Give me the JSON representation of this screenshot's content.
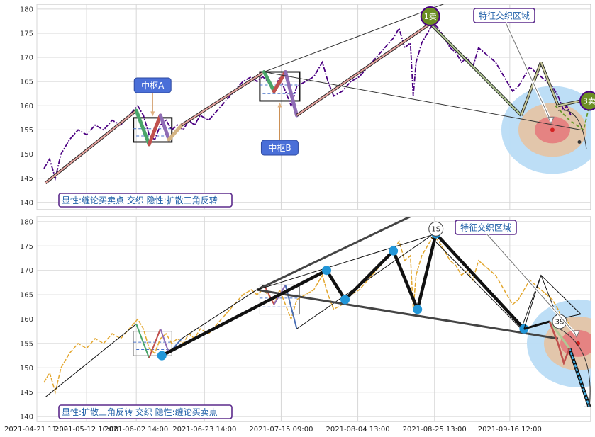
{
  "chart_data": [
    {
      "type": "line",
      "panel": "top",
      "ylim": [
        138.5,
        181
      ],
      "yticks": [
        140,
        145,
        150,
        155,
        160,
        165,
        170,
        175,
        180
      ],
      "price_color": "#4b0082",
      "price_series": [
        [
          0,
          147
        ],
        [
          4,
          149
        ],
        [
          8,
          145
        ],
        [
          12,
          150
        ],
        [
          18,
          153
        ],
        [
          24,
          155
        ],
        [
          30,
          154
        ],
        [
          36,
          156
        ],
        [
          42,
          155
        ],
        [
          48,
          157
        ],
        [
          54,
          156
        ],
        [
          60,
          158
        ],
        [
          66,
          160
        ],
        [
          70,
          158
        ],
        [
          74,
          154
        ],
        [
          78,
          153
        ],
        [
          82,
          156
        ],
        [
          86,
          157
        ],
        [
          90,
          155
        ],
        [
          94,
          156
        ],
        [
          98,
          155
        ],
        [
          102,
          157
        ],
        [
          106,
          156
        ],
        [
          110,
          158
        ],
        [
          116,
          157
        ],
        [
          122,
          159
        ],
        [
          128,
          161
        ],
        [
          134,
          163
        ],
        [
          140,
          165
        ],
        [
          146,
          166
        ],
        [
          150,
          165
        ],
        [
          154,
          166
        ],
        [
          158,
          165
        ],
        [
          162,
          163
        ],
        [
          166,
          166
        ],
        [
          170,
          163
        ],
        [
          174,
          160
        ],
        [
          178,
          164
        ],
        [
          184,
          165
        ],
        [
          190,
          166
        ],
        [
          196,
          169
        ],
        [
          200,
          165
        ],
        [
          204,
          162
        ],
        [
          210,
          163
        ],
        [
          216,
          165
        ],
        [
          222,
          166
        ],
        [
          228,
          168
        ],
        [
          234,
          170
        ],
        [
          240,
          172
        ],
        [
          246,
          174
        ],
        [
          250,
          176
        ],
        [
          254,
          172
        ],
        [
          258,
          173
        ],
        [
          260,
          162
        ],
        [
          262,
          169
        ],
        [
          266,
          173
        ],
        [
          270,
          175
        ],
        [
          274,
          177
        ],
        [
          278,
          176
        ],
        [
          282,
          174
        ],
        [
          286,
          172
        ],
        [
          290,
          171
        ],
        [
          294,
          169
        ],
        [
          298,
          170
        ],
        [
          302,
          168
        ],
        [
          306,
          172
        ],
        [
          310,
          171
        ],
        [
          314,
          170
        ],
        [
          318,
          169
        ],
        [
          322,
          167
        ],
        [
          326,
          165
        ],
        [
          330,
          163
        ],
        [
          334,
          164
        ],
        [
          338,
          166
        ],
        [
          342,
          168
        ],
        [
          346,
          167
        ],
        [
          350,
          166
        ],
        [
          354,
          165
        ],
        [
          358,
          164
        ],
        [
          362,
          162
        ],
        [
          366,
          159
        ],
        [
          368,
          160
        ],
        [
          371,
          158
        ]
      ],
      "bi_strokes": [
        [
          [
            1,
            144
          ],
          [
            65,
            159
          ],
          [
            74,
            152
          ],
          [
            82,
            158
          ],
          [
            88,
            153
          ],
          [
            97,
            156
          ]
        ],
        [
          [
            97,
            156
          ],
          [
            155,
            167
          ],
          [
            162,
            163
          ],
          [
            170,
            167
          ],
          [
            178,
            158
          ]
        ],
        [
          [
            178,
            158
          ],
          [
            272,
            177
          ],
          [
            336,
            158
          ],
          [
            350,
            169
          ],
          [
            362,
            160
          ],
          [
            378,
            161
          ]
        ]
      ],
      "segment_colors": [
        "#3b6fbf",
        "#4aa56a",
        "#c0504d",
        "#8f6db5",
        "#d4b483",
        "#6fb3d9"
      ],
      "wedge_upper": [
        [
          155,
          167
        ],
        [
          290,
          182
        ]
      ],
      "wedge_lower": [
        [
          155,
          167
        ],
        [
          378,
          155
        ]
      ],
      "centers": [
        {
          "label": "中枢A",
          "range": [
            152.5,
            157.5
          ],
          "start": 63,
          "end": 90
        },
        {
          "label": "中枢B",
          "range": [
            161,
            167
          ],
          "start": 152,
          "end": 180
        }
      ],
      "signals": [
        {
          "text": "1卖",
          "x": 272,
          "y": 178.5
        },
        {
          "text": "3卖",
          "x": 384,
          "y": 161
        }
      ],
      "target_center": {
        "x": 358,
        "y": 155
      },
      "zone_label": "特征交织区域",
      "caption": "显性:缠论买卖点 交织 隐性:扩散三角反转"
    },
    {
      "type": "line",
      "panel": "bottom",
      "ylim": [
        139,
        181
      ],
      "yticks": [
        140,
        145,
        150,
        155,
        160,
        165,
        170,
        175,
        180
      ],
      "price_color": "#e3a72f",
      "price_series": [
        [
          0,
          147
        ],
        [
          4,
          149
        ],
        [
          8,
          145
        ],
        [
          12,
          150
        ],
        [
          18,
          153
        ],
        [
          24,
          155
        ],
        [
          30,
          154
        ],
        [
          36,
          156
        ],
        [
          42,
          155
        ],
        [
          48,
          157
        ],
        [
          54,
          156
        ],
        [
          60,
          158
        ],
        [
          66,
          160
        ],
        [
          70,
          158
        ],
        [
          74,
          154
        ],
        [
          78,
          153
        ],
        [
          82,
          156
        ],
        [
          86,
          157
        ],
        [
          90,
          155
        ],
        [
          94,
          156
        ],
        [
          98,
          155
        ],
        [
          102,
          157
        ],
        [
          106,
          156
        ],
        [
          110,
          158
        ],
        [
          116,
          157
        ],
        [
          122,
          159
        ],
        [
          128,
          161
        ],
        [
          134,
          163
        ],
        [
          140,
          165
        ],
        [
          146,
          166
        ],
        [
          150,
          165
        ],
        [
          154,
          166
        ],
        [
          158,
          165
        ],
        [
          162,
          163
        ],
        [
          166,
          166
        ],
        [
          170,
          163
        ],
        [
          174,
          160
        ],
        [
          178,
          164
        ],
        [
          184,
          165
        ],
        [
          190,
          166
        ],
        [
          196,
          169
        ],
        [
          200,
          165
        ],
        [
          204,
          162
        ],
        [
          210,
          163
        ],
        [
          216,
          165
        ],
        [
          222,
          166
        ],
        [
          228,
          168
        ],
        [
          234,
          170
        ],
        [
          240,
          172
        ],
        [
          246,
          174
        ],
        [
          250,
          176
        ],
        [
          254,
          172
        ],
        [
          258,
          173
        ],
        [
          260,
          162
        ],
        [
          262,
          169
        ],
        [
          266,
          173
        ],
        [
          270,
          175
        ],
        [
          274,
          177
        ],
        [
          278,
          176
        ],
        [
          282,
          174
        ],
        [
          286,
          172
        ],
        [
          290,
          171
        ],
        [
          294,
          169
        ],
        [
          298,
          170
        ],
        [
          302,
          168
        ],
        [
          306,
          172
        ],
        [
          310,
          171
        ],
        [
          314,
          170
        ],
        [
          318,
          169
        ],
        [
          322,
          167
        ],
        [
          326,
          165
        ],
        [
          330,
          163
        ],
        [
          334,
          164
        ],
        [
          338,
          166
        ],
        [
          342,
          168
        ],
        [
          346,
          167
        ],
        [
          350,
          166
        ],
        [
          354,
          165
        ],
        [
          358,
          164
        ],
        [
          362,
          162
        ],
        [
          366,
          159
        ],
        [
          368,
          160
        ],
        [
          371,
          158
        ]
      ],
      "bi_thin": [
        [
          [
            1,
            144
          ],
          [
            65,
            159
          ],
          [
            74,
            152
          ],
          [
            82,
            158
          ],
          [
            88,
            153
          ],
          [
            97,
            156
          ],
          [
            155,
            167
          ],
          [
            162,
            163
          ],
          [
            170,
            167
          ],
          [
            178,
            158
          ],
          [
            272,
            177
          ],
          [
            336,
            158
          ],
          [
            350,
            169
          ],
          [
            362,
            160
          ],
          [
            378,
            161
          ]
        ]
      ],
      "triangle_path": [
        [
          83,
          152.5
        ],
        [
          199,
          170
        ],
        [
          212,
          164
        ],
        [
          246,
          174
        ],
        [
          263,
          162
        ],
        [
          276,
          177.5
        ],
        [
          338,
          158
        ]
      ],
      "triangle_points": [
        [
          83,
          152.5
        ],
        [
          199,
          170
        ],
        [
          212,
          164
        ],
        [
          246,
          174
        ],
        [
          263,
          162
        ],
        [
          276,
          177.5
        ],
        [
          338,
          158
        ]
      ],
      "trend_upper": [
        [
          150,
          166
        ],
        [
          315,
          189
        ]
      ],
      "trend_lower": [
        [
          150,
          166
        ],
        [
          362,
          156
        ]
      ],
      "centers": [
        {
          "range": [
            152.5,
            157.5
          ],
          "start": 63,
          "end": 90
        },
        {
          "range": [
            161,
            167
          ],
          "start": 152,
          "end": 180
        }
      ],
      "signals": [
        {
          "text": "1S",
          "x": 276,
          "y": 178.5
        },
        {
          "text": "3S",
          "x": 363,
          "y": 159.5
        }
      ],
      "breakdown": [
        [
          338,
          158
        ],
        [
          356,
          159.5
        ],
        [
          370,
          154
        ],
        [
          384,
          142
        ]
      ],
      "target_center": {
        "x": 376,
        "y": 155
      },
      "zone_label": "特征交织区域",
      "caption": "显性:扩散三角反转 交织 隐性:缠论买卖点"
    }
  ],
  "x_axis": {
    "range": [
      -5,
      385
    ],
    "ticks": [
      {
        "x": -5,
        "label": "2021-04-21 11:00"
      },
      {
        "x": 30,
        "label": "2021-05-12 10:00"
      },
      {
        "x": 65,
        "label": "2021-06-02 14:00"
      },
      {
        "x": 113,
        "label": "2021-06-23 14:00"
      },
      {
        "x": 167,
        "label": "2021-07-15 09:00"
      },
      {
        "x": 221,
        "label": "2021-08-04 13:00"
      },
      {
        "x": 275,
        "label": "2021-08-25 13:00"
      },
      {
        "x": 328,
        "label": "2021-09-16 12:00"
      }
    ]
  }
}
